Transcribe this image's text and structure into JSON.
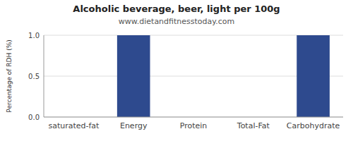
{
  "chart_data": {
    "type": "bar",
    "title": "Alcoholic beverage, beer, light per 100g",
    "subtitle": "www.dietandfitnesstoday.com",
    "ylabel": "Percentage of RDH (%)",
    "categories": [
      "saturated-fat",
      "Energy",
      "Protein",
      "Total-Fat",
      "Carbohydrate"
    ],
    "values": [
      0.0,
      1.0,
      0.0,
      0.0,
      1.0
    ],
    "color": "#2e4a8e",
    "ylim": [
      0,
      1.0
    ],
    "yticks": [
      {
        "value": 0.0,
        "label": "0.0"
      },
      {
        "value": 0.5,
        "label": "0.5"
      },
      {
        "value": 1.0,
        "label": "1.0"
      }
    ],
    "grid": true
  }
}
